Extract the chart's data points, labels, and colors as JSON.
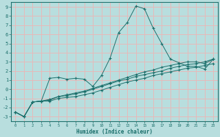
{
  "xlabel": "Humidex (Indice chaleur)",
  "background_color": "#b8dede",
  "grid_color": "#e8b8b8",
  "line_color": "#1a6e6a",
  "border_color": "#1a6e6a",
  "x_ticks": [
    0,
    1,
    2,
    3,
    4,
    5,
    6,
    7,
    8,
    9,
    10,
    11,
    12,
    13,
    14,
    15,
    16,
    17,
    18,
    19,
    20,
    21,
    22,
    23
  ],
  "y_ticks": [
    -3,
    -2,
    -1,
    0,
    1,
    2,
    3,
    4,
    5,
    6,
    7,
    8,
    9
  ],
  "xlim": [
    -0.5,
    23.5
  ],
  "ylim": [
    -3.5,
    9.5
  ],
  "line1_x": [
    0,
    1,
    2,
    3,
    4,
    5,
    6,
    7,
    8,
    9,
    10,
    11,
    12,
    13,
    14,
    15,
    16,
    17,
    18,
    19,
    20,
    21,
    22,
    23
  ],
  "line1_y": [
    -2.5,
    -3.0,
    -1.4,
    -1.3,
    -1.3,
    -1.0,
    -0.9,
    -0.8,
    -0.6,
    -0.4,
    -0.1,
    0.2,
    0.5,
    0.8,
    1.0,
    1.2,
    1.5,
    1.7,
    1.9,
    2.1,
    2.3,
    2.4,
    2.6,
    2.8
  ],
  "line2_x": [
    0,
    1,
    2,
    3,
    4,
    5,
    6,
    7,
    8,
    9,
    10,
    11,
    12,
    13,
    14,
    15,
    16,
    17,
    18,
    19,
    20,
    21,
    22,
    23
  ],
  "line2_y": [
    -2.5,
    -3.0,
    -1.4,
    -1.3,
    1.2,
    1.3,
    1.1,
    1.2,
    1.1,
    0.3,
    1.5,
    3.4,
    6.2,
    7.3,
    9.1,
    8.8,
    6.7,
    5.0,
    3.3,
    2.9,
    2.5,
    2.5,
    2.2,
    3.3
  ],
  "line3_x": [
    0,
    1,
    2,
    3,
    4,
    5,
    6,
    7,
    8,
    9,
    10,
    11,
    12,
    13,
    14,
    15,
    16,
    17,
    18,
    19,
    20,
    21,
    22,
    23
  ],
  "line3_y": [
    -2.5,
    -3.0,
    -1.4,
    -1.3,
    -1.2,
    -0.8,
    -0.7,
    -0.5,
    -0.3,
    0.0,
    0.3,
    0.6,
    0.9,
    1.1,
    1.4,
    1.6,
    1.8,
    2.0,
    2.3,
    2.5,
    2.7,
    2.8,
    3.0,
    3.3
  ],
  "line4_x": [
    0,
    1,
    2,
    3,
    4,
    5,
    6,
    7,
    8,
    9,
    10,
    11,
    12,
    13,
    14,
    15,
    16,
    17,
    18,
    19,
    20,
    21,
    22,
    23
  ],
  "line4_y": [
    -2.5,
    -3.0,
    -1.4,
    -1.3,
    -1.1,
    -0.8,
    -0.6,
    -0.4,
    -0.2,
    0.1,
    0.4,
    0.7,
    1.0,
    1.3,
    1.6,
    1.9,
    2.1,
    2.4,
    2.6,
    2.8,
    3.0,
    3.0,
    2.8,
    3.3
  ]
}
